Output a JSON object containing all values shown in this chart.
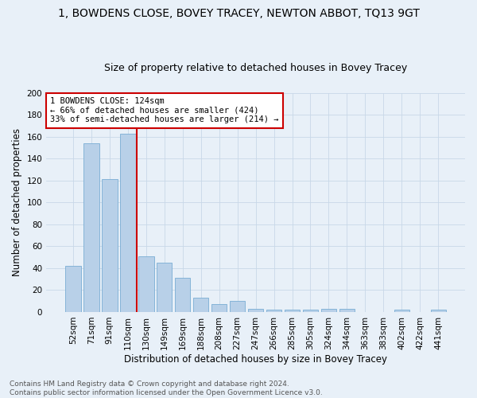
{
  "title": "1, BOWDENS CLOSE, BOVEY TRACEY, NEWTON ABBOT, TQ13 9GT",
  "subtitle": "Size of property relative to detached houses in Bovey Tracey",
  "xlabel": "Distribution of detached houses by size in Bovey Tracey",
  "ylabel": "Number of detached properties",
  "categories": [
    "52sqm",
    "71sqm",
    "91sqm",
    "110sqm",
    "130sqm",
    "149sqm",
    "169sqm",
    "188sqm",
    "208sqm",
    "227sqm",
    "247sqm",
    "266sqm",
    "285sqm",
    "305sqm",
    "324sqm",
    "344sqm",
    "363sqm",
    "383sqm",
    "402sqm",
    "422sqm",
    "441sqm"
  ],
  "values": [
    42,
    154,
    121,
    163,
    51,
    45,
    31,
    13,
    7,
    10,
    3,
    2,
    2,
    2,
    3,
    3,
    0,
    0,
    2,
    0,
    2
  ],
  "bar_color": "#b8d0e8",
  "bar_edge_color": "#7aadd4",
  "vline_color": "#cc0000",
  "annotation_text": "1 BOWDENS CLOSE: 124sqm\n← 66% of detached houses are smaller (424)\n33% of semi-detached houses are larger (214) →",
  "annotation_box_edge_color": "#cc0000",
  "annotation_box_bg": "#ffffff",
  "ylim": [
    0,
    200
  ],
  "yticks": [
    0,
    20,
    40,
    60,
    80,
    100,
    120,
    140,
    160,
    180,
    200
  ],
  "grid_color": "#c8d8e8",
  "background_color": "#e8f0f8",
  "footnote": "Contains HM Land Registry data © Crown copyright and database right 2024.\nContains public sector information licensed under the Open Government Licence v3.0.",
  "title_fontsize": 10,
  "subtitle_fontsize": 9,
  "xlabel_fontsize": 8.5,
  "ylabel_fontsize": 8.5,
  "tick_fontsize": 7.5,
  "annotation_fontsize": 7.5,
  "footnote_fontsize": 6.5
}
